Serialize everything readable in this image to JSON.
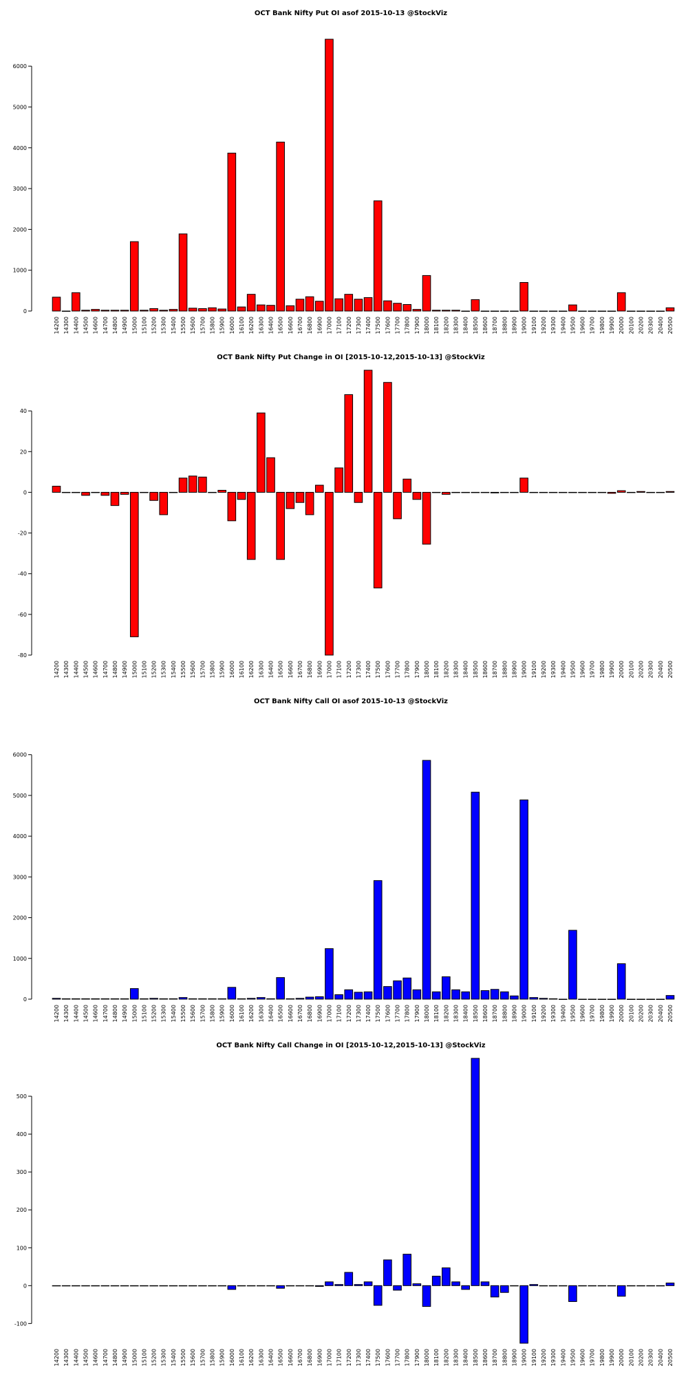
{
  "chart_data": [
    {
      "type": "bar",
      "title": "OCT Bank Nifty Put OI asof 2015-10-13 @StockViz",
      "color": "#ff0000",
      "categories": [
        "14200",
        "14300",
        "14400",
        "14500",
        "14600",
        "14700",
        "14800",
        "14900",
        "15000",
        "15100",
        "15200",
        "15300",
        "15400",
        "15500",
        "15600",
        "15700",
        "15800",
        "15900",
        "16000",
        "16100",
        "16200",
        "16300",
        "16400",
        "16500",
        "16600",
        "16700",
        "16800",
        "16900",
        "17000",
        "17100",
        "17200",
        "17300",
        "17400",
        "17500",
        "17600",
        "17700",
        "17800",
        "17900",
        "18000",
        "18100",
        "18200",
        "18300",
        "18400",
        "18500",
        "18600",
        "18700",
        "18800",
        "18900",
        "19000",
        "19100",
        "19200",
        "19300",
        "19400",
        "19500",
        "19600",
        "19700",
        "19800",
        "19900",
        "20000",
        "20100",
        "20200",
        "20300",
        "20400",
        "20500"
      ],
      "values": [
        340,
        0,
        450,
        20,
        40,
        20,
        20,
        20,
        1700,
        20,
        60,
        20,
        40,
        1890,
        70,
        60,
        80,
        50,
        3870,
        100,
        410,
        150,
        140,
        4140,
        130,
        290,
        350,
        240,
        6660,
        300,
        410,
        290,
        330,
        2700,
        250,
        190,
        160,
        40,
        870,
        20,
        20,
        20,
        0,
        280,
        0,
        0,
        0,
        0,
        700,
        0,
        0,
        0,
        0,
        150,
        0,
        0,
        0,
        0,
        450,
        0,
        0,
        0,
        0,
        80
      ],
      "ylim": [
        0,
        6660
      ],
      "yticks": [
        0,
        1000,
        2000,
        3000,
        4000,
        5000,
        6000
      ]
    },
    {
      "type": "bar",
      "title": "OCT Bank Nifty Put Change in OI [2015-10-12,2015-10-13] @StockViz",
      "color": "#ff0000",
      "categories": [
        "14200",
        "14300",
        "14400",
        "14500",
        "14600",
        "14700",
        "14800",
        "14900",
        "15000",
        "15100",
        "15200",
        "15300",
        "15400",
        "15500",
        "15600",
        "15700",
        "15800",
        "15900",
        "16000",
        "16100",
        "16200",
        "16300",
        "16400",
        "16500",
        "16600",
        "16700",
        "16800",
        "16900",
        "17000",
        "17100",
        "17200",
        "17300",
        "17400",
        "17500",
        "17600",
        "17700",
        "17800",
        "17900",
        "18000",
        "18100",
        "18200",
        "18300",
        "18400",
        "18500",
        "18600",
        "18700",
        "18800",
        "18900",
        "19000",
        "19100",
        "19200",
        "19300",
        "19400",
        "19500",
        "19600",
        "19700",
        "19800",
        "19900",
        "20000",
        "20100",
        "20200",
        "20300",
        "20400",
        "20500"
      ],
      "values": [
        3,
        0,
        0,
        -1.5,
        0,
        -1.5,
        -6.5,
        -1,
        -71,
        0,
        -4,
        -11,
        0,
        7,
        8,
        7.5,
        0,
        1,
        -14,
        -3.5,
        -33,
        39,
        17,
        -33,
        -8,
        -5,
        -11,
        3.5,
        -80,
        12,
        48,
        -5,
        60,
        -47,
        54,
        -13,
        6.5,
        -3.5,
        -25.5,
        0,
        -1,
        0,
        0,
        0,
        0,
        -0.3,
        0,
        0,
        7,
        0,
        0,
        0,
        0,
        0,
        0,
        0,
        0,
        -0.5,
        0.8,
        0,
        0.4,
        0,
        0,
        0.4
      ],
      "ylim": [
        -80,
        60
      ],
      "yticks": [
        -80,
        -60,
        -40,
        -20,
        0,
        20,
        40
      ]
    },
    {
      "type": "bar",
      "title": "OCT Bank Nifty Call OI asof 2015-10-13 @StockViz",
      "color": "#0000ff",
      "categories": [
        "14200",
        "14300",
        "14400",
        "14500",
        "14600",
        "14700",
        "14800",
        "14900",
        "15000",
        "15100",
        "15200",
        "15300",
        "15400",
        "15500",
        "15600",
        "15700",
        "15800",
        "15900",
        "16000",
        "16100",
        "16200",
        "16300",
        "16400",
        "16500",
        "16600",
        "16700",
        "16800",
        "16900",
        "17000",
        "17100",
        "17200",
        "17300",
        "17400",
        "17500",
        "17600",
        "17700",
        "17800",
        "17900",
        "18000",
        "18100",
        "18200",
        "18300",
        "18400",
        "18500",
        "18600",
        "18700",
        "18800",
        "18900",
        "19000",
        "19100",
        "19200",
        "19300",
        "19400",
        "19500",
        "19600",
        "19700",
        "19800",
        "19900",
        "20000",
        "20100",
        "20200",
        "20300",
        "20400",
        "20500"
      ],
      "values": [
        20,
        10,
        10,
        10,
        10,
        10,
        10,
        10,
        260,
        10,
        20,
        10,
        10,
        40,
        10,
        10,
        10,
        10,
        290,
        10,
        20,
        40,
        10,
        530,
        10,
        20,
        50,
        60,
        1240,
        110,
        230,
        170,
        180,
        2910,
        310,
        450,
        520,
        230,
        5860,
        180,
        550,
        230,
        180,
        5080,
        210,
        240,
        180,
        80,
        4890,
        40,
        20,
        10,
        0,
        1690,
        0,
        0,
        0,
        0,
        870,
        0,
        0,
        0,
        0,
        90
      ],
      "ylim": [
        0,
        5860
      ],
      "yticks": [
        0,
        1000,
        2000,
        3000,
        4000,
        5000,
        6000
      ]
    },
    {
      "type": "bar",
      "title": "OCT Bank Nifty Call Change in OI [2015-10-12,2015-10-13] @StockViz",
      "color": "#0000ff",
      "categories": [
        "14200",
        "14300",
        "14400",
        "14500",
        "14600",
        "14700",
        "14800",
        "14900",
        "15000",
        "15100",
        "15200",
        "15300",
        "15400",
        "15500",
        "15600",
        "15700",
        "15800",
        "15900",
        "16000",
        "16100",
        "16200",
        "16300",
        "16400",
        "16500",
        "16600",
        "16700",
        "16800",
        "16900",
        "17000",
        "17100",
        "17200",
        "17300",
        "17400",
        "17500",
        "17600",
        "17700",
        "17800",
        "17900",
        "18000",
        "18100",
        "18200",
        "18300",
        "18400",
        "18500",
        "18600",
        "18700",
        "18800",
        "18900",
        "19000",
        "19100",
        "19200",
        "19300",
        "19400",
        "19500",
        "19600",
        "19700",
        "19800",
        "19900",
        "20000",
        "20100",
        "20200",
        "20300",
        "20400",
        "20500"
      ],
      "values": [
        0,
        0,
        0,
        0,
        0,
        0,
        0,
        0,
        0,
        0,
        0,
        0,
        0,
        0,
        0,
        0,
        0,
        0,
        -10,
        0,
        0,
        0,
        0,
        -7,
        0,
        0,
        0,
        -2,
        10,
        3,
        35,
        3,
        10,
        -52,
        68,
        -12,
        83,
        5,
        -55,
        25,
        47,
        10,
        -10,
        600,
        10,
        -30,
        -18,
        0,
        -152,
        3,
        0,
        0,
        0,
        -42,
        0,
        0,
        0,
        0,
        -28,
        0,
        0,
        0,
        0,
        7
      ],
      "ylim": [
        -152,
        600
      ],
      "yticks": [
        -100,
        0,
        100,
        200,
        300,
        400,
        500
      ]
    }
  ]
}
